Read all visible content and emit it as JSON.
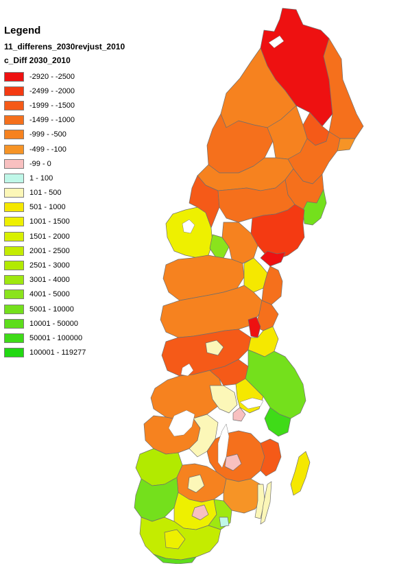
{
  "legend": {
    "title": "Legend",
    "layer_name": "11_differens_2030revjust_2010",
    "field_name": "c_Diff 2030_2010",
    "classes": [
      {
        "label": "-2920 - -2500",
        "color": "#ee1111"
      },
      {
        "label": "-2499 - -2000",
        "color": "#f43a12"
      },
      {
        "label": "-1999 - -1500",
        "color": "#f55a18"
      },
      {
        "label": "-1499 - -1000",
        "color": "#f5701c"
      },
      {
        "label": "-999 - -500",
        "color": "#f6821f"
      },
      {
        "label": "-499 - -100",
        "color": "#f69426"
      },
      {
        "label": "-99 - 0",
        "color": "#f8c0c0"
      },
      {
        "label": "1 - 100",
        "color": "#bff7e8"
      },
      {
        "label": "101 - 500",
        "color": "#fcf7b8"
      },
      {
        "label": "501 - 1000",
        "color": "#f5e800"
      },
      {
        "label": "1001 - 1500",
        "color": "#eef000"
      },
      {
        "label": "1501 - 2000",
        "color": "#d8f000"
      },
      {
        "label": "2001 - 2500",
        "color": "#c4ec00"
      },
      {
        "label": "2501 - 3000",
        "color": "#b2ea00"
      },
      {
        "label": "3001 - 4000",
        "color": "#9fe810"
      },
      {
        "label": "4001 - 5000",
        "color": "#8ae31c"
      },
      {
        "label": "5001 - 10000",
        "color": "#74e01c"
      },
      {
        "label": "10001 - 50000",
        "color": "#5ddd1c"
      },
      {
        "label": "50001 - 100000",
        "color": "#3fdb18"
      },
      {
        "label": "100001 - 119277",
        "color": "#22d812"
      }
    ]
  }
}
